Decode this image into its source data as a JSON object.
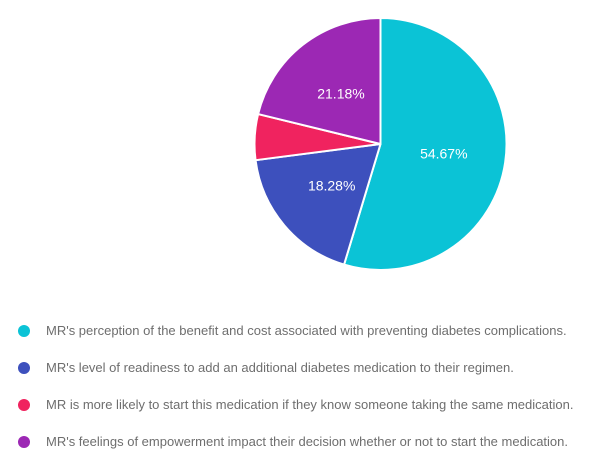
{
  "chart_data": {
    "type": "pie",
    "title": "",
    "background_color": "#ffffff",
    "slice_border_color": "#ffffff",
    "label_color": "#ffffff",
    "legend_position": "bottom-left",
    "legend_text_color": "#6e6e6e",
    "direction": "clockwise",
    "start_angle_deg": 0,
    "slices": [
      {
        "label": "MR's perception of the benefit and cost associated with preventing diabetes complications.",
        "value": 54.67,
        "percent_label": "54.67%",
        "color": "#0bc3d6",
        "label_visible": true
      },
      {
        "label": "MR's level of readiness to add an additional diabetes medication to their regimen.",
        "value": 18.28,
        "percent_label": "18.28%",
        "color": "#3d50bd",
        "label_visible": true
      },
      {
        "label": "MR is more likely to start this medication if they know someone taking the same medication.",
        "value": 5.87,
        "percent_label": "",
        "color": "#f0235f",
        "label_visible": false
      },
      {
        "label": "MR's feelings of empowerment impact their decision whether or not to start the medication.",
        "value": 21.18,
        "percent_label": "21.18%",
        "color": "#9c28b4",
        "label_visible": true
      }
    ]
  }
}
